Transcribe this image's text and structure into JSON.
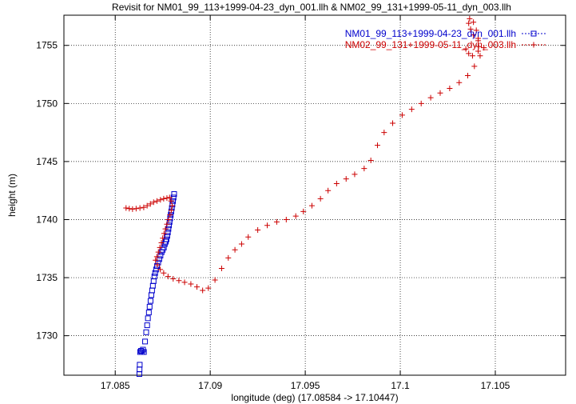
{
  "chart_data": {
    "type": "scatter",
    "title": "Revisit for NM01_99_113+1999-04-23_dyn_001.llh & NM02_99_131+1999-05-11_dyn_003.llh",
    "xlabel": "longitude (deg) (17.08584 -> 17.10447)",
    "ylabel": "height (m)",
    "xlim": [
      17.0823,
      17.1087
    ],
    "ylim": [
      1726.6,
      1757.6
    ],
    "grid": true,
    "grid_style": "dotted",
    "legend_position": "top-right",
    "x_ticks": [
      17.085,
      17.09,
      17.095,
      17.1,
      17.105
    ],
    "x_tick_labels": [
      "17.085",
      "17.09",
      "17.095",
      "17.1",
      "17.105"
    ],
    "y_ticks": [
      1730,
      1735,
      1740,
      1745,
      1750,
      1755
    ],
    "y_tick_labels": [
      "1730",
      "1735",
      "1740",
      "1745",
      "1750",
      "1755"
    ],
    "series": [
      {
        "name": "NM01_99_113+1999-04-23_dyn_001.llh",
        "color": "#0000cc",
        "marker": "square",
        "points": [
          [
            17.08627,
            1726.7
          ],
          [
            17.08628,
            1727.1
          ],
          [
            17.08629,
            1727.5
          ],
          [
            17.08631,
            1728.6
          ],
          [
            17.08636,
            1728.7
          ],
          [
            17.08641,
            1728.6
          ],
          [
            17.08646,
            1728.8
          ],
          [
            17.08651,
            1728.6
          ],
          [
            17.08657,
            1729.5
          ],
          [
            17.08663,
            1730.3
          ],
          [
            17.08668,
            1730.9
          ],
          [
            17.08672,
            1731.5
          ],
          [
            17.08677,
            1732.0
          ],
          [
            17.08681,
            1732.5
          ],
          [
            17.08686,
            1733.0
          ],
          [
            17.0869,
            1733.5
          ],
          [
            17.08694,
            1733.9
          ],
          [
            17.08698,
            1734.3
          ],
          [
            17.08702,
            1734.7
          ],
          [
            17.08706,
            1735.1
          ],
          [
            17.0871,
            1735.4
          ],
          [
            17.08715,
            1735.7
          ],
          [
            17.0872,
            1736.0
          ],
          [
            17.08726,
            1736.3
          ],
          [
            17.08732,
            1736.6
          ],
          [
            17.08738,
            1736.9
          ],
          [
            17.08744,
            1737.2
          ],
          [
            17.0875,
            1737.4
          ],
          [
            17.08756,
            1737.6
          ],
          [
            17.08761,
            1737.9
          ],
          [
            17.08766,
            1738.1
          ],
          [
            17.0877,
            1738.3
          ],
          [
            17.08774,
            1738.6
          ],
          [
            17.08777,
            1738.9
          ],
          [
            17.0878,
            1739.2
          ],
          [
            17.08783,
            1739.5
          ],
          [
            17.08786,
            1739.8
          ],
          [
            17.08789,
            1740.1
          ],
          [
            17.08792,
            1740.4
          ],
          [
            17.08795,
            1740.7
          ],
          [
            17.08798,
            1741.0
          ],
          [
            17.08801,
            1741.3
          ],
          [
            17.08804,
            1741.6
          ],
          [
            17.08807,
            1741.9
          ],
          [
            17.0881,
            1742.2
          ]
        ]
      },
      {
        "name": "NM02_99_131+1999-05-11_dyn_003.llh",
        "color": "#cc0000",
        "marker": "plus",
        "points": [
          [
            17.08557,
            1741.0
          ],
          [
            17.08574,
            1740.95
          ],
          [
            17.08591,
            1740.9
          ],
          [
            17.0861,
            1740.95
          ],
          [
            17.0863,
            1741.0
          ],
          [
            17.0865,
            1741.05
          ],
          [
            17.08668,
            1741.2
          ],
          [
            17.08685,
            1741.35
          ],
          [
            17.08702,
            1741.5
          ],
          [
            17.0872,
            1741.6
          ],
          [
            17.08738,
            1741.7
          ],
          [
            17.08755,
            1741.8
          ],
          [
            17.08772,
            1741.85
          ],
          [
            17.08786,
            1741.9
          ],
          [
            17.08794,
            1741.6
          ],
          [
            17.088,
            1741.2
          ],
          [
            17.08795,
            1740.8
          ],
          [
            17.08788,
            1740.4
          ],
          [
            17.0878,
            1740.0
          ],
          [
            17.08772,
            1739.6
          ],
          [
            17.08764,
            1739.2
          ],
          [
            17.08757,
            1738.8
          ],
          [
            17.0875,
            1738.4
          ],
          [
            17.08743,
            1738.0
          ],
          [
            17.08735,
            1737.6
          ],
          [
            17.08727,
            1737.2
          ],
          [
            17.08719,
            1736.8
          ],
          [
            17.08712,
            1736.5
          ],
          [
            17.08722,
            1736.1
          ],
          [
            17.08737,
            1735.7
          ],
          [
            17.08755,
            1735.4
          ],
          [
            17.08778,
            1735.1
          ],
          [
            17.08805,
            1734.9
          ],
          [
            17.08835,
            1734.75
          ],
          [
            17.08865,
            1734.6
          ],
          [
            17.08898,
            1734.45
          ],
          [
            17.0893,
            1734.2
          ],
          [
            17.0896,
            1733.9
          ],
          [
            17.0899,
            1734.1
          ],
          [
            17.09025,
            1734.8
          ],
          [
            17.0906,
            1735.8
          ],
          [
            17.09095,
            1736.7
          ],
          [
            17.0913,
            1737.4
          ],
          [
            17.09165,
            1737.9
          ],
          [
            17.092,
            1738.5
          ],
          [
            17.0925,
            1739.1
          ],
          [
            17.093,
            1739.5
          ],
          [
            17.0935,
            1739.8
          ],
          [
            17.094,
            1740.0
          ],
          [
            17.0945,
            1740.3
          ],
          [
            17.0949,
            1740.7
          ],
          [
            17.09535,
            1741.2
          ],
          [
            17.0958,
            1741.8
          ],
          [
            17.0962,
            1742.5
          ],
          [
            17.09665,
            1743.1
          ],
          [
            17.09715,
            1743.5
          ],
          [
            17.0976,
            1743.9
          ],
          [
            17.0981,
            1744.4
          ],
          [
            17.09845,
            1745.1
          ],
          [
            17.0988,
            1746.4
          ],
          [
            17.09915,
            1747.5
          ],
          [
            17.0996,
            1748.3
          ],
          [
            17.1001,
            1749.0
          ],
          [
            17.1006,
            1749.5
          ],
          [
            17.1011,
            1750.0
          ],
          [
            17.1016,
            1750.5
          ],
          [
            17.1021,
            1750.9
          ],
          [
            17.1026,
            1751.3
          ],
          [
            17.1031,
            1751.8
          ],
          [
            17.10355,
            1752.4
          ],
          [
            17.1039,
            1753.2
          ],
          [
            17.1042,
            1754.1
          ],
          [
            17.1044,
            1754.8
          ],
          [
            17.1041,
            1755.4
          ],
          [
            17.10385,
            1755.9
          ],
          [
            17.1037,
            1756.4
          ],
          [
            17.1036,
            1756.9
          ],
          [
            17.10365,
            1757.3
          ],
          [
            17.10385,
            1757.0
          ],
          [
            17.104,
            1756.3
          ],
          [
            17.1041,
            1755.6
          ],
          [
            17.10412,
            1754.9
          ],
          [
            17.1041,
            1754.5
          ],
          [
            17.1038,
            1754.1
          ],
          [
            17.1036,
            1754.3
          ],
          [
            17.10345,
            1754.7
          ]
        ]
      }
    ]
  }
}
